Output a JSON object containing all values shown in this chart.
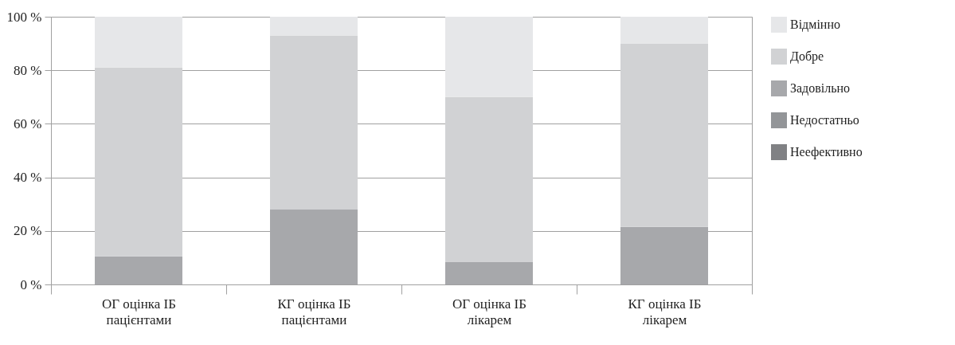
{
  "chart_data": {
    "type": "bar",
    "stacked": true,
    "categories": [
      "ОГ оцінка ІБ пацієнтами",
      "КГ оцінка ІБ пацієнтами",
      "ОГ оцінка ІБ лікарем",
      "КГ оцінка ІБ лікарем"
    ],
    "series": [
      {
        "name": "Неефективно",
        "color": "#808184",
        "values": [
          0,
          0,
          0,
          0
        ]
      },
      {
        "name": "Недостатньо",
        "color": "#939598",
        "values": [
          0,
          0,
          0,
          0
        ]
      },
      {
        "name": "Задовільно",
        "color": "#a7a8ab",
        "values": [
          10.5,
          28,
          8.5,
          21.5
        ]
      },
      {
        "name": "Добре",
        "color": "#d1d2d4",
        "values": [
          70.5,
          65,
          61.5,
          68.5
        ]
      },
      {
        "name": "Відмінно",
        "color": "#e6e7e9",
        "values": [
          19,
          7,
          30,
          10
        ]
      }
    ],
    "ylim": [
      0,
      100
    ],
    "yticks": [
      {
        "value": 0,
        "label": "0 %"
      },
      {
        "value": 20,
        "label": "20 %"
      },
      {
        "value": 40,
        "label": "40 %"
      },
      {
        "value": 60,
        "label": "60 %"
      },
      {
        "value": 80,
        "label": "80 %"
      },
      {
        "value": 100,
        "label": "100 %"
      }
    ],
    "grid": "y",
    "legend": "right"
  }
}
